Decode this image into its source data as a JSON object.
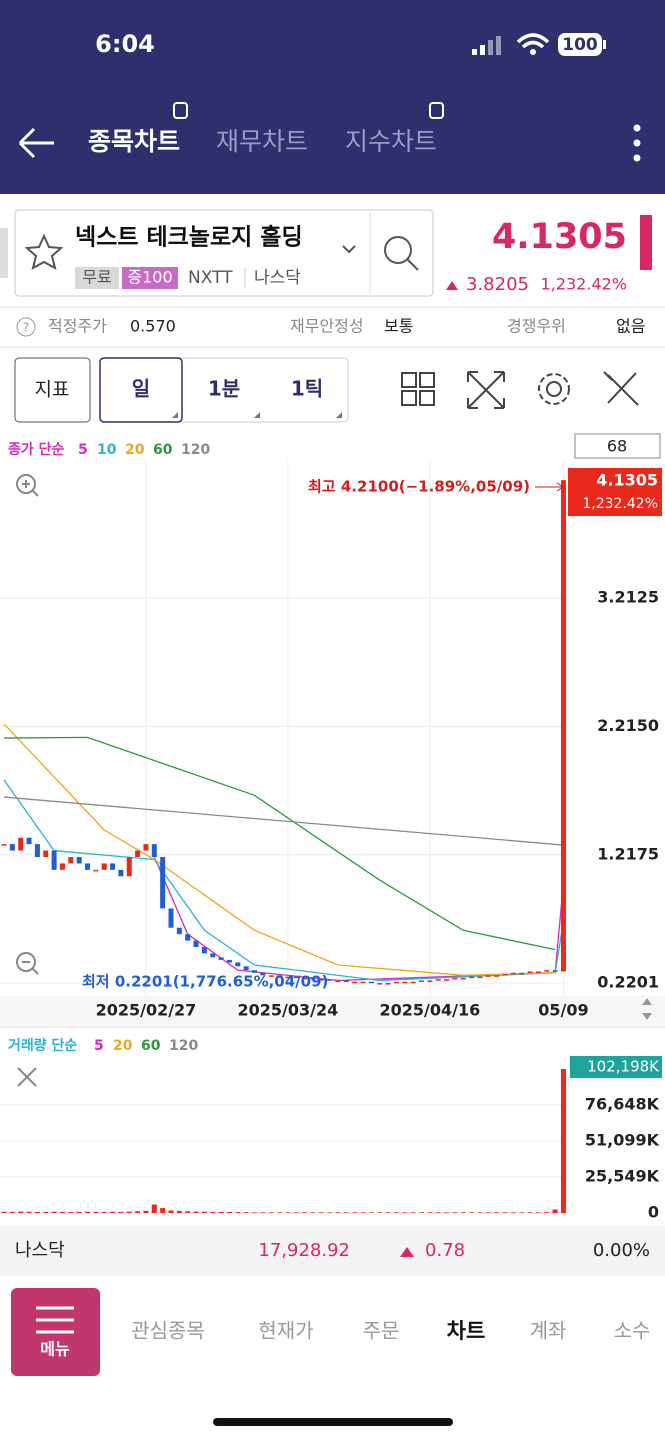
{
  "status": {
    "time": "6:04",
    "battery": "100"
  },
  "nav": {
    "tabs": [
      "종목차트",
      "재무차트",
      "지수차트"
    ]
  },
  "stock": {
    "name": "넥스트 테크놀로지 홀딩",
    "tags": [
      "무료",
      "증100",
      "NXTT",
      "나스닥"
    ],
    "price": "4.1305",
    "change": "3.8205",
    "change_pct": "1,232.42%"
  },
  "info": {
    "fair_price_label": "적정주가",
    "fair_price": "0.570",
    "stability_label": "재무안정성",
    "stability": "보통",
    "competitive_label": "경쟁우위",
    "competitive": "없음"
  },
  "toolbar": {
    "buttons": [
      "지표",
      "일",
      "1분",
      "1틱"
    ]
  },
  "chart_data": [
    {
      "type": "candlestick",
      "legend_title": "종가 단순",
      "count": "68",
      "high_note": "최고 4.2100(−1.89%,05/09)",
      "low_note": "최저 0.2201(1,776.65%,04/09)",
      "categories": [
        null,
        null,
        null,
        null,
        null,
        null,
        null,
        null,
        null,
        null,
        null,
        null,
        null,
        null,
        null,
        null,
        null,
        "2025/02/27",
        null,
        null,
        null,
        null,
        null,
        null,
        null,
        null,
        null,
        null,
        null,
        null,
        null,
        null,
        null,
        null,
        "2025/03/24",
        null,
        null,
        null,
        null,
        null,
        null,
        null,
        null,
        null,
        null,
        null,
        null,
        null,
        null,
        null,
        null,
        "2025/04/16",
        null,
        null,
        null,
        null,
        null,
        null,
        null,
        null,
        null,
        null,
        null,
        null,
        null,
        null,
        null,
        "05/09"
      ],
      "close": [
        1.3,
        1.25,
        1.35,
        1.3,
        1.2,
        1.25,
        1.1,
        1.15,
        1.2,
        1.15,
        1.1,
        1.1,
        1.15,
        1.1,
        1.05,
        1.2,
        1.25,
        1.3,
        1.2,
        0.8,
        0.65,
        0.6,
        0.55,
        0.5,
        0.45,
        0.42,
        0.4,
        0.38,
        0.35,
        0.32,
        0.3,
        0.28,
        0.28,
        0.27,
        0.27,
        0.26,
        0.26,
        0.25,
        0.25,
        0.24,
        0.24,
        0.23,
        0.23,
        0.23,
        0.22,
        0.22,
        0.22,
        0.23,
        0.23,
        0.23,
        0.24,
        0.24,
        0.25,
        0.25,
        0.26,
        0.26,
        0.27,
        0.27,
        0.28,
        0.28,
        0.29,
        0.3,
        0.3,
        0.31,
        0.31,
        0.32,
        0.31,
        4.1305
      ],
      "up_color": "#e8291c",
      "down_color": "#1f5fd1",
      "series": [
        {
          "name": "5",
          "color": "#d62bc0",
          "x": [
            18,
            22,
            28,
            40,
            66,
            67
          ],
          "values": [
            1.2,
            0.6,
            0.32,
            0.24,
            0.3,
            1.0
          ]
        },
        {
          "name": "10",
          "color": "#2bb3d6",
          "x": [
            0,
            6,
            18,
            24,
            30,
            45,
            66,
            67
          ],
          "values": [
            1.8,
            1.25,
            1.18,
            0.63,
            0.36,
            0.24,
            0.3,
            0.7
          ]
        },
        {
          "name": "20",
          "color": "#e8a91c",
          "x": [
            0,
            12,
            18,
            30,
            40,
            55,
            66
          ],
          "values": [
            2.235,
            1.41,
            1.18,
            0.63,
            0.36,
            0.28,
            0.3
          ]
        },
        {
          "name": "60",
          "color": "#2a9a3c",
          "x": [
            0,
            10,
            30,
            45,
            55,
            66
          ],
          "values": [
            2.125,
            2.13,
            1.68,
            1.02,
            0.63,
            0.48
          ]
        },
        {
          "name": "120",
          "color": "#8a8a8a",
          "x": [
            0,
            67
          ],
          "values": [
            1.666,
            1.293
          ]
        }
      ],
      "ylim": [
        0.127,
        4.287
      ],
      "yticks": [
        0.2201,
        1.2175,
        {
          "value": 2.215,
          "label": "2.2150"
        },
        3.2125
      ],
      "grid": true
    },
    {
      "type": "bar",
      "legend_title": "거래량 단순",
      "legend": [
        {
          "name": "5",
          "color": "#d62bc0"
        },
        {
          "name": "20",
          "color": "#e8a91c"
        },
        {
          "name": "60",
          "color": "#2a9a3c"
        },
        {
          "name": "120",
          "color": "#8a8a8a"
        }
      ],
      "current_label": "102,198K",
      "color": "#e8291c",
      "values": [
        900,
        800,
        1000,
        900,
        700,
        800,
        900,
        800,
        700,
        800,
        900,
        800,
        700,
        900,
        800,
        1000,
        1200,
        1500,
        6000,
        3500,
        1800,
        1500,
        1200,
        1000,
        900,
        800,
        700,
        700,
        600,
        600,
        500,
        500,
        500,
        500,
        500,
        500,
        500,
        500,
        500,
        500,
        500,
        500,
        500,
        500,
        500,
        500,
        500,
        500,
        500,
        500,
        500,
        500,
        500,
        500,
        500,
        500,
        500,
        500,
        500,
        500,
        500,
        500,
        500,
        500,
        500,
        600,
        2500,
        102198
      ],
      "ylim": [
        0,
        115700
      ],
      "yticks": [
        0,
        {
          "value": 25549,
          "label": "25,549K"
        },
        {
          "value": 51099,
          "label": "51,099K"
        },
        {
          "value": 76648,
          "label": "76,648K"
        }
      ],
      "grid": true
    }
  ],
  "footer": {
    "index_name": "나스닥",
    "index_value": "17,928.92",
    "index_change": "0.78",
    "index_pct": "0.00%"
  },
  "menu": {
    "button": "메뉴",
    "items": [
      "관심종목",
      "현재가",
      "주문",
      "차트",
      "계좌",
      "소수"
    ]
  }
}
